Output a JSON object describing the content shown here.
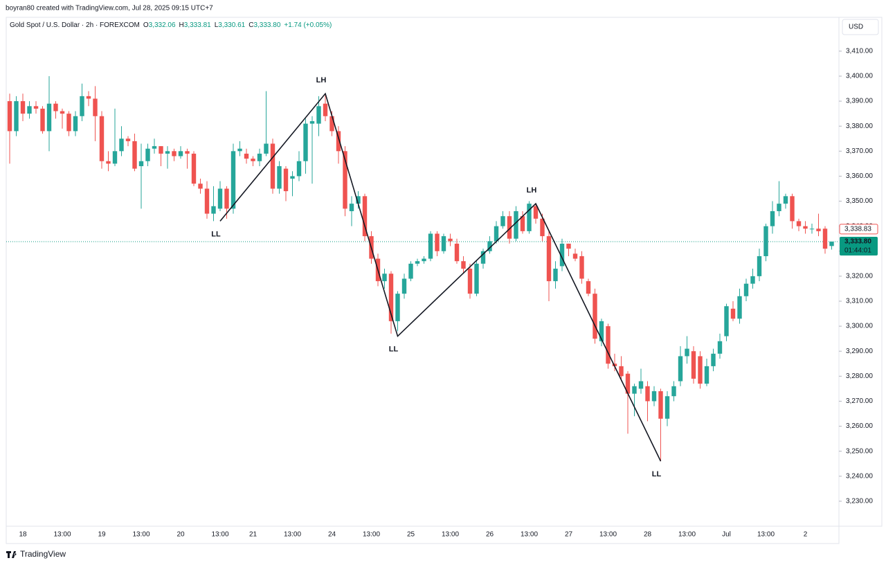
{
  "header": {
    "credit": "boyran80 created with TradingView.com, Jul 28, 2025 09:15 UTC+7"
  },
  "legend": {
    "symbol": "Gold Spot / U.S. Dollar · 2h · FOREXCOM",
    "ohlc": [
      {
        "key": "O",
        "value": "3,332.06"
      },
      {
        "key": "H",
        "value": "3,333.81"
      },
      {
        "key": "L",
        "value": "3,330.61"
      },
      {
        "key": "C",
        "value": "3,333.80"
      }
    ],
    "change": "+1.74 (+0.05%)"
  },
  "currency": "USD",
  "footer": {
    "brand": "TradingView"
  },
  "chart_data": {
    "type": "candlestick",
    "up_color": "#26a69a",
    "down_color": "#ef5350",
    "grid": false,
    "categories": [
      null,
      null,
      "18",
      null,
      null,
      null,
      null,
      null,
      "13:00",
      null,
      null,
      null,
      null,
      null,
      "19",
      null,
      null,
      null,
      null,
      null,
      "13:00",
      null,
      null,
      null,
      null,
      null,
      "20",
      null,
      null,
      null,
      null,
      null,
      "13:00",
      null,
      null,
      null,
      null,
      "21",
      null,
      null,
      null,
      null,
      null,
      "13:00",
      null,
      null,
      null,
      null,
      null,
      "24",
      null,
      null,
      null,
      null,
      null,
      "13:00",
      null,
      null,
      null,
      null,
      null,
      "25",
      null,
      null,
      null,
      null,
      null,
      "13:00",
      null,
      null,
      null,
      null,
      null,
      "26",
      null,
      null,
      null,
      null,
      null,
      "13:00",
      null,
      null,
      null,
      null,
      null,
      "27",
      null,
      null,
      null,
      null,
      null,
      "13:00",
      null,
      null,
      null,
      null,
      null,
      "28",
      null,
      null,
      null,
      null,
      null,
      "13:00",
      null,
      null,
      null,
      null,
      null,
      "Jul",
      null,
      null,
      null,
      null,
      null,
      "13:00",
      null,
      null,
      null,
      null,
      null,
      "2",
      null,
      null,
      null,
      null
    ],
    "open": [
      3390,
      3378,
      3390,
      3385,
      3388,
      3387,
      3378,
      3389,
      3386,
      3385,
      3378,
      3384,
      3392,
      3391,
      3384,
      3366,
      3365,
      3370,
      3375,
      3374,
      3364,
      3366,
      3371,
      3372,
      3369,
      3370,
      3368,
      3370,
      3369,
      3357,
      3355,
      3345,
      3347,
      3355,
      3347,
      3370,
      3369,
      3367,
      3366,
      3369,
      3373,
      3355,
      3363,
      3359,
      3360,
      3366,
      3381,
      3381,
      3389,
      3384,
      3378,
      3370,
      3346,
      3349,
      3352,
      3336,
      3327,
      3318,
      3321,
      3302,
      3313,
      3319,
      3325,
      3326,
      3327,
      3337,
      3330,
      3335,
      3333,
      3326,
      3323,
      3313,
      3325,
      3330,
      3334,
      3340,
      3344,
      3335,
      3344,
      3338,
      3348,
      3343,
      3336,
      3318,
      3324,
      3333,
      3329,
      3328,
      3318,
      3313,
      3294,
      3300,
      3285,
      3284,
      3281,
      3273,
      3275,
      3276,
      3270,
      3274,
      3263,
      3272,
      3278,
      3288,
      3290,
      3288,
      3277,
      3284,
      3289,
      3296,
      3307,
      3303,
      3312,
      3317,
      3320,
      3328,
      3340,
      3346,
      3349,
      3352,
      3342,
      3340,
      3339,
      3339,
      3339,
      3332.06
    ],
    "high": [
      3393,
      3392,
      3393,
      3390,
      3390,
      3388,
      3400,
      3390,
      3387,
      3386,
      3386,
      3397,
      3394,
      3396,
      3386,
      3370,
      3387,
      3380,
      3376,
      3377,
      3373,
      3373,
      3375,
      3372,
      3372,
      3371,
      3372,
      3371,
      3370,
      3359,
      3358,
      3356,
      3358,
      3356,
      3373,
      3374,
      3371,
      3368,
      3371,
      3394,
      3375,
      3366,
      3364,
      3362,
      3370,
      3383,
      3384,
      3392,
      3393,
      3386,
      3380,
      3372,
      3352,
      3354,
      3353,
      3338,
      3329,
      3323,
      3322,
      3314,
      3321,
      3326,
      3327,
      3328,
      3338,
      3338,
      3337,
      3337,
      3335,
      3328,
      3325,
      3326,
      3331,
      3336,
      3342,
      3346,
      3346,
      3348,
      3346,
      3350,
      3349,
      3345,
      3338,
      3326,
      3335,
      3333,
      3331,
      3330,
      3319,
      3315,
      3303,
      3301,
      3289,
      3288,
      3282,
      3277,
      3283,
      3278,
      3276,
      3275,
      3274,
      3278,
      3292,
      3296,
      3292,
      3290,
      3287,
      3291,
      3297,
      3309,
      3310,
      3315,
      3319,
      3323,
      3331,
      3341,
      3350,
      3358,
      3353,
      3353,
      3343,
      3342,
      3341,
      3345,
      3340,
      3333.81
    ],
    "low": [
      3365,
      3376,
      3382,
      3383,
      3385,
      3377,
      3370,
      3383,
      3379,
      3376,
      3376,
      3382,
      3388,
      3374,
      3363,
      3362,
      3364,
      3368,
      3372,
      3362,
      3347,
      3364,
      3369,
      3364,
      3363,
      3366,
      3367,
      3363,
      3356,
      3353,
      3343,
      3342,
      3346,
      3343,
      3345,
      3368,
      3365,
      3364,
      3364,
      3368,
      3353,
      3353,
      3350,
      3352,
      3358,
      3361,
      3357,
      3376,
      3382,
      3376,
      3365,
      3344,
      3340,
      3347,
      3334,
      3325,
      3316,
      3315,
      3297,
      3298,
      3311,
      3318,
      3324,
      3325,
      3326,
      3328,
      3329,
      3332,
      3325,
      3321,
      3311,
      3312,
      3323,
      3329,
      3333,
      3339,
      3333,
      3334,
      3337,
      3337,
      3341,
      3334,
      3310,
      3315,
      3322,
      3328,
      3326,
      3317,
      3312,
      3293,
      3292,
      3283,
      3282,
      3278,
      3257,
      3264,
      3273,
      3262,
      3268,
      3246,
      3260,
      3270,
      3276,
      3285,
      3277,
      3275,
      3276,
      3282,
      3287,
      3294,
      3302,
      3301,
      3310,
      3315,
      3318,
      3326,
      3337,
      3344,
      3347,
      3339,
      3338,
      3337,
      3337,
      3336,
      3329,
      3330.61
    ],
    "close": [
      3378,
      3390,
      3385,
      3388,
      3387,
      3378,
      3389,
      3386,
      3385,
      3378,
      3384,
      3392,
      3391,
      3384,
      3366,
      3365,
      3370,
      3375,
      3374,
      3363,
      3366,
      3371,
      3372,
      3369,
      3370,
      3368,
      3370,
      3369,
      3357,
      3355,
      3345,
      3348,
      3355,
      3347,
      3370,
      3371,
      3367,
      3366,
      3369,
      3373,
      3355,
      3364,
      3354,
      3360,
      3366,
      3381,
      3382,
      3388,
      3384,
      3378,
      3370,
      3347,
      3349,
      3352,
      3336,
      3327,
      3318,
      3321,
      3302,
      3313,
      3319,
      3325,
      3326,
      3327,
      3337,
      3330,
      3336,
      3334,
      3326,
      3323,
      3313,
      3325,
      3330,
      3334,
      3340,
      3344,
      3335,
      3346,
      3338,
      3349,
      3343,
      3336,
      3318,
      3323,
      3333,
      3331,
      3327,
      3319,
      3313,
      3295,
      3302,
      3285,
      3284,
      3280,
      3273,
      3276,
      3278,
      3270,
      3274,
      3263,
      3272,
      3276,
      3288,
      3291,
      3279,
      3277,
      3284,
      3289,
      3294,
      3308,
      3303,
      3312,
      3317,
      3320,
      3328,
      3340,
      3346,
      3349,
      3352,
      3342,
      3340,
      3339,
      3339,
      3338,
      3331,
      3333.8
    ],
    "ylim": [
      3220,
      3422.7
    ],
    "yticks": [
      {
        "value": 3230,
        "label": "3,230.00"
      },
      {
        "value": 3240,
        "label": "3,240.00"
      },
      {
        "value": 3250,
        "label": "3,250.00"
      },
      {
        "value": 3260,
        "label": "3,260.00"
      },
      {
        "value": 3270,
        "label": "3,270.00"
      },
      {
        "value": 3280,
        "label": "3,280.00"
      },
      {
        "value": 3290,
        "label": "3,290.00"
      },
      {
        "value": 3300,
        "label": "3,300.00"
      },
      {
        "value": 3310,
        "label": "3,310.00"
      },
      {
        "value": 3320,
        "label": "3,320.00"
      },
      {
        "value": 3330,
        "label": "3,330.00"
      },
      {
        "value": 3340,
        "label": "3,340.00"
      },
      {
        "value": 3350,
        "label": "3,350.00"
      },
      {
        "value": 3360,
        "label": "3,360.00"
      },
      {
        "value": 3370,
        "label": "3,370.00"
      },
      {
        "value": 3380,
        "label": "3,380.00"
      },
      {
        "value": 3390,
        "label": "3,390.00"
      },
      {
        "value": 3400,
        "label": "3,400.00"
      },
      {
        "value": 3410,
        "label": "3,410.00"
      }
    ],
    "price_labels": {
      "reference": {
        "value": 3338.83,
        "label": "3,338.83",
        "color": "#ef5350"
      },
      "last": {
        "value": 3333.8,
        "label": "3,333.80",
        "color": "#089981"
      },
      "countdown": "01:44:01"
    },
    "zigzag": [
      {
        "index": 32,
        "value": 3342,
        "label": "LL"
      },
      {
        "index": 48,
        "value": 3393,
        "label": "LH"
      },
      {
        "index": 59,
        "value": 3296,
        "label": "LL"
      },
      {
        "index": 80,
        "value": 3349,
        "label": "LH"
      },
      {
        "index": 99,
        "value": 3246,
        "label": "LL"
      }
    ]
  }
}
